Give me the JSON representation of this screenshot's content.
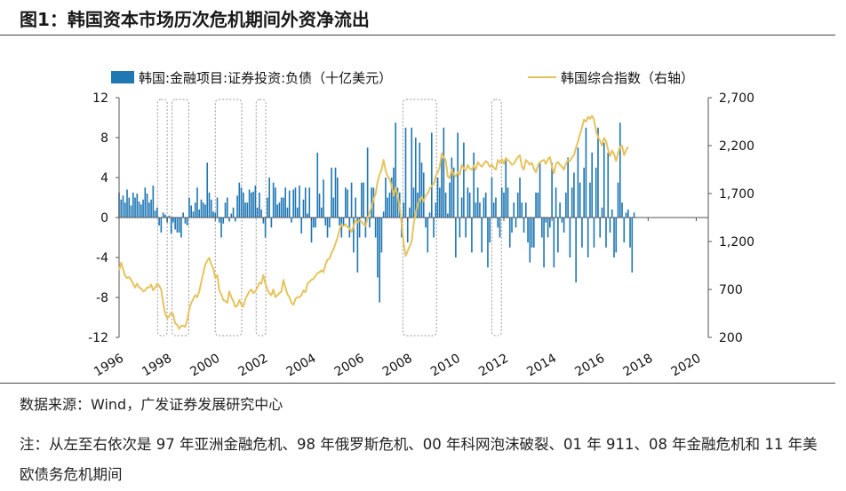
{
  "title": "图1：韩国资本市场历次危机期间外资净流出",
  "source": "数据来源：Wind，广发证券发展研究中心",
  "note": "注：从左至右依次是 97 年亚洲金融危机、98 年俄罗斯危机、00 年科网泡沫破裂、01 年 911、08 年金融危机和 11 年美欧债务危机期间",
  "colors": {
    "bar": "#1f77b4",
    "line": "#e6c35c",
    "box": "#999999"
  },
  "chart_data": {
    "type": "bar+line",
    "legend": {
      "bar": "韩国:金融项目:证券投资:负债（十亿美元）",
      "line": "韩国综合指数（右轴）",
      "placement": "top"
    },
    "left_axis": {
      "ylim": [
        -12,
        12
      ],
      "ticks": [
        "12",
        "8",
        "4",
        "0",
        "-4",
        "-8",
        "-12"
      ]
    },
    "right_axis": {
      "ylim": [
        200,
        2700
      ],
      "ticks": [
        "2,700",
        "2,200",
        "1,700",
        "1,200",
        "700",
        "200"
      ]
    },
    "x_axis": {
      "range": [
        1996,
        2020.5
      ],
      "ticks": [
        "1996",
        "1998",
        "2000",
        "2002",
        "2004",
        "2006",
        "2008",
        "2010",
        "2012",
        "2014",
        "2016",
        "2018",
        "2020"
      ]
    },
    "crisis_windows": [
      [
        1997.6,
        1998.0
      ],
      [
        1998.2,
        1998.9
      ],
      [
        2000.0,
        2001.1
      ],
      [
        2001.7,
        2002.1
      ],
      [
        2007.8,
        2009.2
      ],
      [
        2011.5,
        2011.9
      ]
    ],
    "bars": {
      "start": 1996.0,
      "step": 0.0833333,
      "values": [
        2.5,
        1.8,
        2.2,
        1.5,
        2.8,
        2.0,
        1.2,
        2.5,
        2.0,
        2.4,
        1.6,
        1.3,
        1.8,
        3.0,
        2.4,
        1.5,
        1.8,
        3.2,
        0.7,
        1.0,
        -0.8,
        -1.5,
        0.5,
        0.3,
        -0.5,
        0.2,
        -1.6,
        -0.5,
        -1.2,
        -1.5,
        -1.5,
        -2.0,
        0.5,
        -0.6,
        -0.8,
        2.0,
        1.2,
        0.6,
        1.5,
        3.0,
        0.8,
        1.8,
        1.5,
        1.3,
        5.5,
        2.5,
        1.8,
        0.6,
        0.5,
        2.0,
        -0.5,
        -2.0,
        -0.6,
        1.5,
        2.0,
        -0.4,
        0.4,
        1.0,
        -0.4,
        2.2,
        3.5,
        3.0,
        2.5,
        1.5,
        1.5,
        2.8,
        2.5,
        2.6,
        3.2,
        1.0,
        2.5,
        0.8,
        -0.6,
        -2.0,
        2.0,
        4.0,
        -1.0,
        3.5,
        3.0,
        1.3,
        1.5,
        2.0,
        2.0,
        3.0,
        1.0,
        2.7,
        -0.5,
        2.8,
        3.0,
        1.0,
        3.2,
        -1.6,
        1.8,
        3.0,
        0.4,
        3.0,
        -2.5,
        -1.0,
        -1.0,
        6.5,
        2.4,
        1.0,
        3.8,
        -0.8,
        -2.0,
        -1.0,
        5.0,
        2.0,
        5.0,
        4.0,
        -0.8,
        -2.0,
        -0.8,
        3.0,
        2.8,
        -2.0,
        3.5,
        -3.5,
        2.0,
        -5.5,
        -2.0,
        3.5,
        3.5,
        -2.0,
        7.0,
        -1.0,
        3.0,
        3.0,
        -2.0,
        -6.0,
        -8.5,
        -3.5,
        0.6,
        4.0,
        2.0,
        2.5,
        4.0,
        5.0,
        9.5,
        3.0,
        2.5,
        -2.0,
        1.5,
        9.0,
        -2.5,
        1.0,
        9.0,
        3.0,
        8.0,
        2.5,
        7.5,
        5.5,
        4.5,
        -1.0,
        -3.5,
        0.5,
        8.5,
        -2.0,
        1.5,
        4.0,
        3.0,
        6.0,
        9.0,
        2.5,
        0.4,
        3.5,
        6.0,
        5.0,
        -4.0,
        8.5,
        -2.0,
        2.0,
        7.5,
        -2.0,
        3.0,
        2.5,
        -3.5,
        6.5,
        1.5,
        3.0,
        1.5,
        -3.5,
        2.0,
        2.5,
        -5.0,
        -2.5,
        4.0,
        1.5,
        2.0,
        -1.0,
        -2.0,
        3.0,
        2.5,
        6.0,
        3.0,
        -3.0,
        -1.5,
        1.5,
        -1.0,
        2.5,
        4.0,
        1.5,
        -1.5,
        1.5,
        -2.5,
        -4.5,
        -3.0,
        -3.0,
        2.5,
        2.5,
        5.5,
        -2.0,
        -5.0,
        -0.5,
        -2.0,
        -1.0,
        5.5,
        -5.0,
        3.0,
        -3.5,
        1.5,
        -0.5,
        -1.5,
        2.5,
        6.0,
        -4.0,
        3.0,
        4.5,
        -6.5,
        7.0,
        3.5,
        -3.0,
        5.0,
        9.0,
        -4.0,
        3.5,
        6.5,
        -3.0,
        5.0,
        9.0,
        -2.0,
        1.0,
        7.5,
        -3.0,
        6.5,
        -1.5,
        0.8,
        -4.0,
        -3.5,
        3.5,
        9.5,
        1.5,
        -2.5,
        0.5,
        0.8,
        -3.0,
        -5.5,
        0.5
      ]
    },
    "line": {
      "start": 1996.0,
      "step": 0.0833333,
      "values": [
        900,
        980,
        910,
        840,
        820,
        830,
        800,
        760,
        720,
        760,
        720,
        710,
        680,
        690,
        720,
        720,
        750,
        690,
        720,
        760,
        740,
        700,
        560,
        450,
        400,
        420,
        460,
        440,
        350,
        330,
        290,
        320,
        320,
        310,
        380,
        490,
        560,
        600,
        640,
        620,
        680,
        780,
        870,
        960,
        1000,
        1030,
        960,
        920,
        820,
        850,
        690,
        650,
        590,
        580,
        560,
        680,
        620,
        580,
        520,
        530,
        590,
        540,
        520,
        600,
        640,
        680,
        700,
        660,
        680,
        720,
        770,
        760,
        850,
        760,
        700,
        660,
        640,
        700,
        620,
        640,
        660,
        680,
        800,
        720,
        650,
        620,
        560,
        540,
        600,
        620,
        620,
        640,
        690,
        670,
        760,
        780,
        800,
        810,
        840,
        870,
        880,
        900,
        880,
        960,
        1010,
        1020,
        1080,
        1120,
        1180,
        1240,
        1320,
        1380,
        1360,
        1380,
        1350,
        1340,
        1300,
        1360,
        1420,
        1400,
        1420,
        1410,
        1380,
        1360,
        1440,
        1500,
        1560,
        1640,
        1700,
        1820,
        1900,
        1950,
        2050,
        1940,
        1880,
        1850,
        1780,
        1680,
        1760,
        1680,
        1560,
        1380,
        1180,
        1050,
        1100,
        1150,
        1200,
        1380,
        1500,
        1580,
        1640,
        1660,
        1620,
        1680,
        1700,
        1750,
        1780,
        1800,
        1880,
        1920,
        1980,
        2120,
        2080,
        2050,
        1880,
        1860,
        1950,
        1900,
        1880,
        1920,
        1900,
        2000,
        1960,
        1940,
        2000,
        1960,
        1950,
        1990,
        1950,
        2030,
        2000,
        1980,
        2010,
        2040,
        2020,
        1980,
        2000,
        1970,
        1950,
        2050,
        2020,
        2060,
        2010,
        2070,
        2050,
        2030,
        2000,
        2010,
        2050,
        2080,
        2100,
        1980,
        1950,
        2050,
        2030,
        2000,
        2020,
        1960,
        1920,
        1990,
        2030,
        2040,
        2050,
        2010,
        2060,
        2080,
        1980,
        1910,
        2010,
        2030,
        2000,
        1980,
        1950,
        2010,
        2050,
        2040,
        2080,
        2100,
        2180,
        2240,
        2320,
        2390,
        2470,
        2450,
        2500,
        2480,
        2510,
        2470,
        2350,
        2290,
        2250,
        2200,
        2280,
        2250,
        2160,
        2090,
        2150,
        2110,
        2040,
        2120,
        2190,
        2200,
        2100,
        2150,
        2190
      ]
    }
  }
}
